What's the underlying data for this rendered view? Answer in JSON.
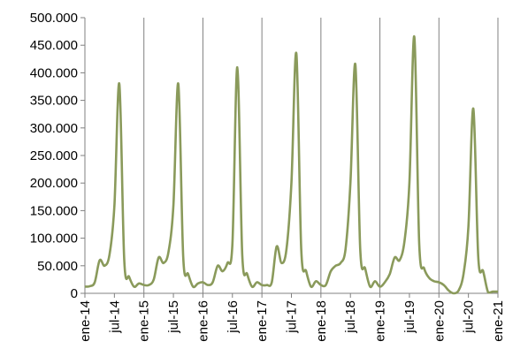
{
  "chart_data": {
    "type": "line",
    "title": "",
    "xlabel": "",
    "ylabel": "",
    "ylim": [
      0,
      500000
    ],
    "yticks": [
      {
        "value": 0,
        "label": "0"
      },
      {
        "value": 50000,
        "label": "50.000"
      },
      {
        "value": 100000,
        "label": "100.000"
      },
      {
        "value": 150000,
        "label": "150.000"
      },
      {
        "value": 200000,
        "label": "200.000"
      },
      {
        "value": 250000,
        "label": "250.000"
      },
      {
        "value": 300000,
        "label": "300.000"
      },
      {
        "value": 350000,
        "label": "350.000"
      },
      {
        "value": 400000,
        "label": "400.000"
      },
      {
        "value": 450000,
        "label": "450.000"
      },
      {
        "value": 500000,
        "label": "500.000"
      }
    ],
    "xticks": [
      "ene-14",
      "jul-14",
      "ene-15",
      "jul-15",
      "ene-16",
      "jul-16",
      "ene-17",
      "jul-17",
      "ene-18",
      "jul-18",
      "ene-19",
      "jul-19",
      "ene-20",
      "jul-20",
      "ene-21"
    ],
    "grid": "vertical at January of each year",
    "legend": "none",
    "colors": {
      "series": "#8a9a5b",
      "grid": "#808080",
      "axis": "#808080",
      "text": "#000000"
    },
    "series": [
      {
        "x": [
          "2014-01",
          "2014-02",
          "2014-03",
          "2014-04",
          "2014-05",
          "2014-06",
          "2014-07",
          "2014-08",
          "2014-09",
          "2014-10",
          "2014-11",
          "2014-12",
          "2015-01",
          "2015-02",
          "2015-03",
          "2015-04",
          "2015-05",
          "2015-06",
          "2015-07",
          "2015-08",
          "2015-09",
          "2015-10",
          "2015-11",
          "2015-12",
          "2016-01",
          "2016-02",
          "2016-03",
          "2016-04",
          "2016-05",
          "2016-06",
          "2016-07",
          "2016-08",
          "2016-09",
          "2016-10",
          "2016-11",
          "2016-12",
          "2017-01",
          "2017-02",
          "2017-03",
          "2017-04",
          "2017-05",
          "2017-06",
          "2017-07",
          "2017-08",
          "2017-09",
          "2017-10",
          "2017-11",
          "2017-12",
          "2018-01",
          "2018-02",
          "2018-03",
          "2018-04",
          "2018-05",
          "2018-06",
          "2018-07",
          "2018-08",
          "2018-09",
          "2018-10",
          "2018-11",
          "2018-12",
          "2019-01",
          "2019-02",
          "2019-03",
          "2019-04",
          "2019-05",
          "2019-06",
          "2019-07",
          "2019-08",
          "2019-09",
          "2019-10",
          "2019-11",
          "2019-12",
          "2020-01",
          "2020-02",
          "2020-03",
          "2020-04",
          "2020-05",
          "2020-06",
          "2020-07",
          "2020-08",
          "2020-09",
          "2020-10",
          "2020-11",
          "2020-12",
          "2021-01"
        ],
        "values": [
          12000,
          13000,
          20000,
          60000,
          50000,
          70000,
          160000,
          380000,
          60000,
          30000,
          12000,
          18000,
          15000,
          15000,
          25000,
          65000,
          55000,
          75000,
          160000,
          380000,
          65000,
          35000,
          12000,
          18000,
          20000,
          15000,
          20000,
          50000,
          40000,
          55000,
          90000,
          410000,
          70000,
          35000,
          12000,
          20000,
          15000,
          15000,
          20000,
          85000,
          55000,
          80000,
          200000,
          435000,
          80000,
          40000,
          12000,
          22000,
          15000,
          15000,
          40000,
          50000,
          55000,
          80000,
          200000,
          415000,
          80000,
          45000,
          12000,
          22000,
          12000,
          20000,
          35000,
          65000,
          60000,
          95000,
          200000,
          465000,
          90000,
          45000,
          28000,
          22000,
          20000,
          15000,
          5000,
          0,
          5000,
          35000,
          120000,
          335000,
          65000,
          40000,
          2000,
          3000,
          3000
        ]
      }
    ]
  }
}
